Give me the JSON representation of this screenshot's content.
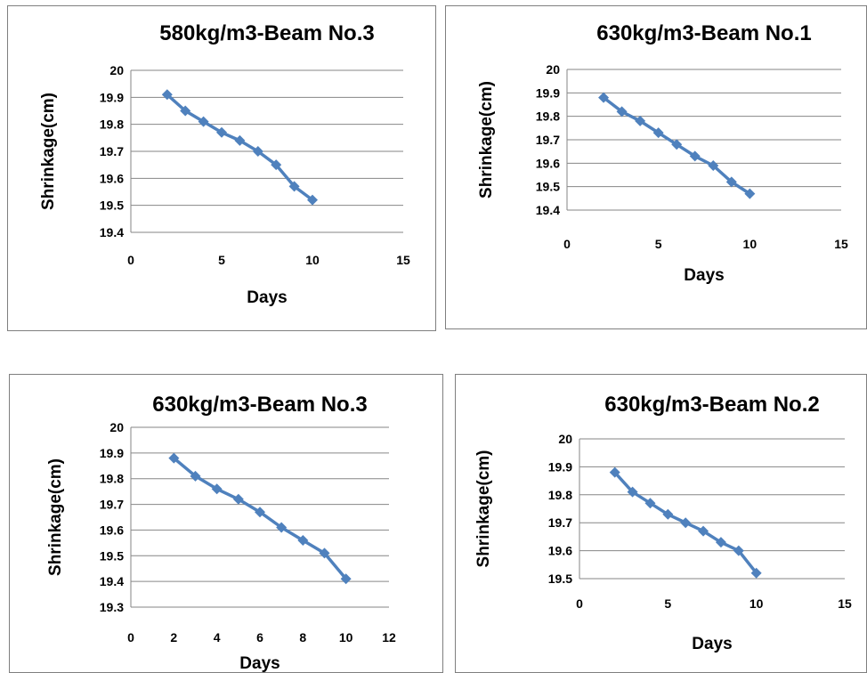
{
  "colors": {
    "series": "#4f81bd",
    "grid": "#868686",
    "border": "#7f7f7f"
  },
  "chart_data": [
    {
      "type": "line",
      "title": "580kg/m3-Beam No.3",
      "xlabel": "Days",
      "ylabel": "Shrinkage(cm)",
      "xlim": [
        0,
        15
      ],
      "ylim": [
        19.4,
        20
      ],
      "xticks": [
        "0",
        "5",
        "10",
        "15"
      ],
      "yticks": [
        "19.4",
        "19.5",
        "19.6",
        "19.7",
        "19.8",
        "19.9",
        "20"
      ],
      "grid": true,
      "legend": "none",
      "series": [
        {
          "x": [
            2,
            3,
            4,
            5,
            6,
            7,
            8,
            9,
            10
          ],
          "values": [
            19.91,
            19.85,
            19.81,
            19.77,
            19.74,
            19.7,
            19.65,
            19.57,
            19.52
          ]
        }
      ]
    },
    {
      "type": "line",
      "title": "630kg/m3-Beam No.1",
      "xlabel": "Days",
      "ylabel": "Shrinkage(cm)",
      "xlim": [
        0,
        15
      ],
      "ylim": [
        19.4,
        20
      ],
      "xticks": [
        "0",
        "5",
        "10",
        "15"
      ],
      "yticks": [
        "19.4",
        "19.5",
        "19.6",
        "19.7",
        "19.8",
        "19.9",
        "20"
      ],
      "grid": true,
      "legend": "none",
      "series": [
        {
          "x": [
            2,
            3,
            4,
            5,
            6,
            7,
            8,
            9,
            10
          ],
          "values": [
            19.88,
            19.82,
            19.78,
            19.73,
            19.68,
            19.63,
            19.59,
            19.52,
            19.47
          ]
        }
      ]
    },
    {
      "type": "line",
      "title": "630kg/m3-Beam No.3",
      "xlabel": "Days",
      "ylabel": "Shrinkage(cm)",
      "xlim": [
        0,
        12
      ],
      "ylim": [
        19.3,
        20
      ],
      "xticks": [
        "0",
        "2",
        "4",
        "6",
        "8",
        "10",
        "12"
      ],
      "yticks": [
        "19.3",
        "19.4",
        "19.5",
        "19.6",
        "19.7",
        "19.8",
        "19.9",
        "20"
      ],
      "grid": true,
      "legend": "none",
      "series": [
        {
          "x": [
            2,
            3,
            4,
            5,
            6,
            7,
            8,
            9,
            10
          ],
          "values": [
            19.88,
            19.81,
            19.76,
            19.72,
            19.67,
            19.61,
            19.56,
            19.51,
            19.41
          ]
        }
      ]
    },
    {
      "type": "line",
      "title": "630kg/m3-Beam No.2",
      "xlabel": "Days",
      "ylabel": "Shrinkage(cm)",
      "xlim": [
        0,
        15
      ],
      "ylim": [
        19.5,
        20
      ],
      "xticks": [
        "0",
        "5",
        "10",
        "15"
      ],
      "yticks": [
        "19.5",
        "19.6",
        "19.7",
        "19.8",
        "19.9",
        "20"
      ],
      "grid": true,
      "legend": "none",
      "series": [
        {
          "x": [
            2,
            3,
            4,
            5,
            6,
            7,
            8,
            9,
            10
          ],
          "values": [
            19.88,
            19.81,
            19.77,
            19.73,
            19.7,
            19.67,
            19.63,
            19.6,
            19.52
          ]
        }
      ]
    }
  ]
}
